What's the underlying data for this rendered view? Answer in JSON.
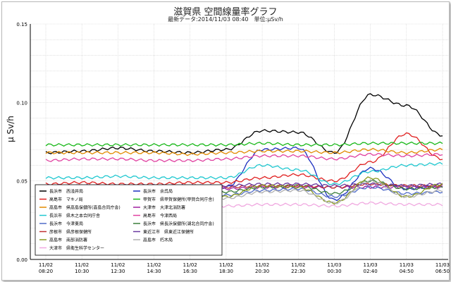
{
  "chart_data": {
    "type": "line",
    "title": "滋賀県 空間線量率グラフ",
    "subtitle": "最新データ:2014/11/03 08:40　単位:μSv/h",
    "ylabel": "μ Sv/h",
    "xlabel": "",
    "ylim": [
      0,
      0.15
    ],
    "yticks": [
      "0.00",
      "0.05",
      "0.10",
      "0.15"
    ],
    "x_ticks": [
      [
        "11/02",
        "08:20"
      ],
      [
        "11/02",
        "10:30"
      ],
      [
        "11/02",
        "12:30"
      ],
      [
        "11/02",
        "14:30"
      ],
      [
        "11/02",
        "16:30"
      ],
      [
        "11/02",
        "18:30"
      ],
      [
        "11/02",
        "20:30"
      ],
      [
        "11/02",
        "22:30"
      ],
      [
        "11/03",
        "00:30"
      ],
      [
        "11/03",
        "02:40"
      ],
      [
        "11/03",
        "04:50"
      ],
      [
        "11/03",
        "06:50"
      ]
    ],
    "x": [
      "11/02 08:20",
      "11/02 10:30",
      "11/02 12:30",
      "11/02 14:30",
      "11/02 16:30",
      "11/02 18:30",
      "11/02 20:30",
      "11/02 22:30",
      "11/03 00:30",
      "11/03 02:40",
      "11/03 04:50",
      "11/03 06:50"
    ],
    "grid": true,
    "legend_position": "lower-left",
    "series": [
      {
        "name": "長浜市　西浅井局",
        "color": "#000000",
        "values": [
          0.068,
          0.069,
          0.071,
          0.069,
          0.068,
          0.07,
          0.082,
          0.081,
          0.068,
          0.105,
          0.098,
          0.079
        ]
      },
      {
        "name": "長浜市　余呉局",
        "color": "#1c2fc0",
        "values": [
          0.046,
          0.046,
          0.046,
          0.045,
          0.046,
          0.046,
          0.07,
          0.071,
          0.038,
          0.058,
          0.045,
          0.047
        ]
      },
      {
        "name": "高島市　マキノ局",
        "color": "#e02020",
        "values": [
          0.048,
          0.049,
          0.048,
          0.048,
          0.049,
          0.049,
          0.052,
          0.054,
          0.05,
          0.062,
          0.08,
          0.064
        ]
      },
      {
        "name": "甲賀市　県甲賀保健所(甲賀合同庁舎)",
        "color": "#19b819",
        "values": [
          0.073,
          0.073,
          0.073,
          0.073,
          0.073,
          0.073,
          0.074,
          0.073,
          0.073,
          0.074,
          0.074,
          0.074
        ]
      },
      {
        "name": "高島市　県高島保健所(高島合同庁舎)",
        "color": "#e28a00",
        "values": [
          0.068,
          0.068,
          0.068,
          0.068,
          0.067,
          0.068,
          0.069,
          0.069,
          0.068,
          0.07,
          0.068,
          0.07
        ]
      },
      {
        "name": "大津市　大津北消防署",
        "color": "#a020a0",
        "values": [
          0.045,
          0.045,
          0.046,
          0.045,
          0.045,
          0.045,
          0.046,
          0.046,
          0.046,
          0.046,
          0.046,
          0.046
        ]
      },
      {
        "name": "長浜市　県木之本合同庁舎",
        "color": "#20c8d0",
        "values": [
          0.052,
          0.052,
          0.053,
          0.052,
          0.052,
          0.052,
          0.06,
          0.057,
          0.048,
          0.056,
          0.06,
          0.061
        ]
      },
      {
        "name": "高島市　今津西局",
        "color": "#e040a0",
        "values": [
          0.063,
          0.064,
          0.064,
          0.063,
          0.063,
          0.064,
          0.066,
          0.066,
          0.064,
          0.067,
          0.066,
          0.067
        ]
      },
      {
        "name": "長浜市　今津東局",
        "color": "#506cc8",
        "values": [
          0.041,
          0.041,
          0.042,
          0.041,
          0.042,
          0.041,
          0.044,
          0.045,
          0.04,
          0.046,
          0.042,
          0.043
        ]
      },
      {
        "name": "長浜市　県長浜保健所(湖北合同庁舎)",
        "color": "#3a7e3a",
        "values": [
          0.043,
          0.043,
          0.043,
          0.043,
          0.043,
          0.043,
          0.046,
          0.047,
          0.042,
          0.05,
          0.045,
          0.046
        ]
      },
      {
        "name": "彦根市　県彦根保健所",
        "color": "#c03030",
        "values": [
          0.046,
          0.047,
          0.046,
          0.046,
          0.047,
          0.046,
          0.047,
          0.047,
          0.046,
          0.048,
          0.047,
          0.047
        ]
      },
      {
        "name": "東近江市　県東近江保健所",
        "color": "#6a3aa0",
        "values": [
          0.047,
          0.047,
          0.047,
          0.047,
          0.047,
          0.047,
          0.048,
          0.048,
          0.047,
          0.048,
          0.047,
          0.048
        ]
      },
      {
        "name": "高島市　南部消防署",
        "color": "#8a9a20",
        "values": [
          0.04,
          0.04,
          0.04,
          0.04,
          0.04,
          0.04,
          0.047,
          0.046,
          0.036,
          0.052,
          0.04,
          0.048
        ]
      },
      {
        "name": "高島市　朽木局",
        "color": "#b0b0b0",
        "values": [
          0.039,
          0.039,
          0.039,
          0.039,
          0.039,
          0.039,
          0.043,
          0.044,
          0.036,
          0.05,
          0.04,
          0.044
        ]
      },
      {
        "name": "大津市　県衛生科学センター",
        "color": "#f0a8e0",
        "values": [
          0.034,
          0.034,
          0.034,
          0.034,
          0.034,
          0.034,
          0.035,
          0.035,
          0.034,
          0.036,
          0.035,
          0.035
        ]
      }
    ]
  }
}
